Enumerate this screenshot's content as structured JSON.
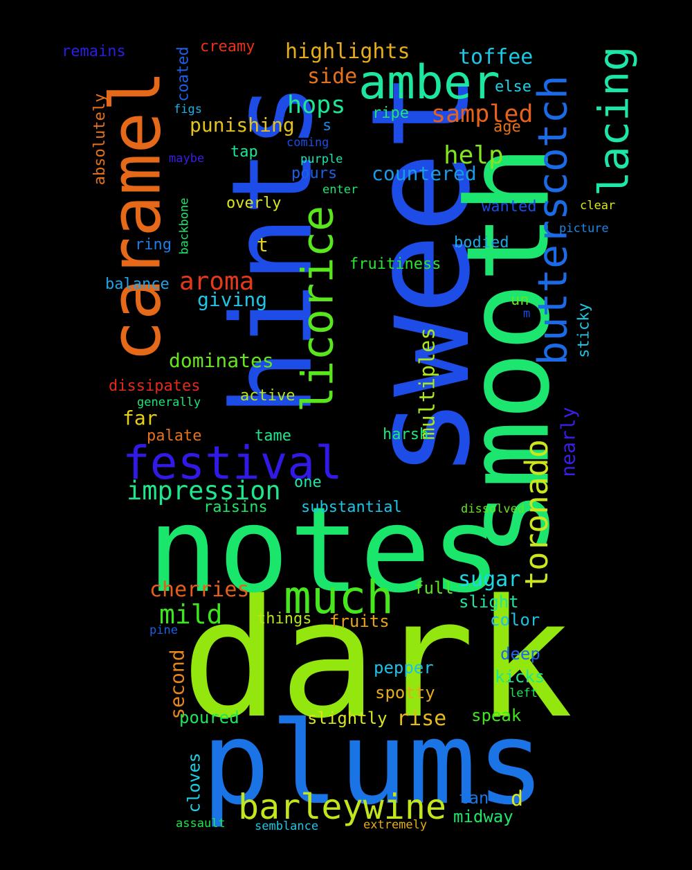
{
  "background_color": "#000000",
  "words": [
    {
      "text": "dark",
      "color": "#94e60f"
    },
    {
      "text": "sweet",
      "color": "#1d4ce6",
      "rotated": true
    },
    {
      "text": "notes",
      "color": "#19e66a"
    },
    {
      "text": "plums",
      "color": "#1b74e6"
    },
    {
      "text": "smooth",
      "color": "#1de670",
      "rotated": true
    },
    {
      "text": "hints",
      "color": "#1d4ce6",
      "rotated": true
    },
    {
      "text": "caramel",
      "color": "#e6691a",
      "rotated": true
    },
    {
      "text": "amber",
      "color": "#1de69e"
    },
    {
      "text": "festival",
      "color": "#3119e6"
    },
    {
      "text": "much",
      "color": "#48e61d"
    },
    {
      "text": "licorice",
      "color": "#5ae61d",
      "rotated": true
    },
    {
      "text": "butterscotch",
      "color": "#1b6ae6",
      "rotated": true
    },
    {
      "text": "barleywine",
      "color": "#c2e61d"
    },
    {
      "text": "toronado",
      "color": "#cce61d",
      "rotated": true
    },
    {
      "text": "lacing",
      "color": "#1de6a8",
      "rotated": true
    },
    {
      "text": "impression",
      "color": "#1de68f"
    },
    {
      "text": "aroma",
      "color": "#e6391a"
    },
    {
      "text": "mild",
      "color": "#3ee61d"
    },
    {
      "text": "sampled",
      "color": "#e6621a"
    },
    {
      "text": "hops",
      "color": "#1de694"
    },
    {
      "text": "help",
      "color": "#82e61d"
    },
    {
      "text": "highlights",
      "color": "#e6ad1a"
    },
    {
      "text": "toffee",
      "color": "#1dc7e6"
    },
    {
      "text": "countered",
      "color": "#1b9be6"
    },
    {
      "text": "cherries",
      "color": "#e65e1a"
    },
    {
      "text": "sugar",
      "color": "#1dd8e6"
    },
    {
      "text": "multiples",
      "color": "#abe61d",
      "rotated": true
    },
    {
      "text": "dominates",
      "color": "#64e61d"
    },
    {
      "text": "giving",
      "color": "#1dc5e6"
    },
    {
      "text": "punishing",
      "color": "#e6c21a"
    },
    {
      "text": "side",
      "color": "#e6721a"
    },
    {
      "text": "far",
      "color": "#e6d01a"
    },
    {
      "text": "second",
      "color": "#e6861a",
      "rotated": true
    },
    {
      "text": "rise",
      "color": "#e6ba1a"
    },
    {
      "text": "d",
      "color": "#dbe61d"
    },
    {
      "text": "nearly",
      "color": "#3a1de6",
      "rotated": true
    },
    {
      "text": "pepper",
      "color": "#1dc0e6"
    },
    {
      "text": "fruits",
      "color": "#e6a21a"
    },
    {
      "text": "slightly",
      "color": "#d9e61d"
    },
    {
      "text": "spotty",
      "color": "#e6ad1a"
    },
    {
      "text": "kicks",
      "color": "#1de68f"
    },
    {
      "text": "deep",
      "color": "#1b6ae6"
    },
    {
      "text": "speak",
      "color": "#43e61d"
    },
    {
      "text": "poured",
      "color": "#1de655"
    },
    {
      "text": "cloves",
      "color": "#1dd2e6",
      "rotated": true
    },
    {
      "text": "midway",
      "color": "#1de66a"
    },
    {
      "text": "tan",
      "color": "#1b74e6"
    },
    {
      "text": "slight",
      "color": "#1de69e"
    },
    {
      "text": "color",
      "color": "#1dc0e6"
    },
    {
      "text": "full",
      "color": "#5ae61d"
    },
    {
      "text": "things",
      "color": "#b5e61d"
    },
    {
      "text": "fruitiness",
      "color": "#2ae631"
    },
    {
      "text": "bodied",
      "color": "#1da8e6"
    },
    {
      "text": "wanted",
      "color": "#1b4ce6"
    },
    {
      "text": "overly",
      "color": "#dbe61d"
    },
    {
      "text": "balance",
      "color": "#1da3e6"
    },
    {
      "text": "ring",
      "color": "#1b7ee6"
    },
    {
      "text": "t",
      "color": "#e6d01a"
    },
    {
      "text": "tame",
      "color": "#1de68f"
    },
    {
      "text": "palate",
      "color": "#e6721a"
    },
    {
      "text": "harsh",
      "color": "#1de67a"
    },
    {
      "text": "active",
      "color": "#b5e61d"
    },
    {
      "text": "dissipates",
      "color": "#e6291a"
    },
    {
      "text": "raisins",
      "color": "#1de66a"
    },
    {
      "text": "substantial",
      "color": "#1dc5e6"
    },
    {
      "text": "one",
      "color": "#1de6a8"
    },
    {
      "text": "pours",
      "color": "#1b60e6"
    },
    {
      "text": "tap",
      "color": "#1de694"
    },
    {
      "text": "s",
      "color": "#1b88e6"
    },
    {
      "text": "ripe",
      "color": "#1de67f"
    },
    {
      "text": "age",
      "color": "#e6721a"
    },
    {
      "text": "else",
      "color": "#1dd2e6"
    },
    {
      "text": "un",
      "color": "#64e61d"
    },
    {
      "text": "sticky",
      "color": "#1dc7e6",
      "rotated": true
    },
    {
      "text": "creamy",
      "color": "#e6331a"
    },
    {
      "text": "remains",
      "color": "#2a1de6"
    },
    {
      "text": "coated",
      "color": "#1b60e6",
      "rotated": true
    },
    {
      "text": "absolutely",
      "color": "#e6721a",
      "rotated": true
    },
    {
      "text": "figs",
      "color": "#1db3e6"
    },
    {
      "text": "maybe",
      "color": "#3a1de6"
    },
    {
      "text": "backbone",
      "color": "#1de66a",
      "rotated": true
    },
    {
      "text": "coming",
      "color": "#1b4ce6"
    },
    {
      "text": "purple",
      "color": "#1de6b3"
    },
    {
      "text": "enter",
      "color": "#1de674"
    },
    {
      "text": "clear",
      "color": "#dbe61d"
    },
    {
      "text": "picture",
      "color": "#1b88e6"
    },
    {
      "text": "m",
      "color": "#1b4ce6"
    },
    {
      "text": "generally",
      "color": "#1de674"
    },
    {
      "text": "pine",
      "color": "#1b60e6"
    },
    {
      "text": "dissolved",
      "color": "#64e61d"
    },
    {
      "text": "left",
      "color": "#1de655"
    },
    {
      "text": "assault",
      "color": "#1de64a"
    },
    {
      "text": "semblance",
      "color": "#1dc7e6"
    },
    {
      "text": "extremely",
      "color": "#e6ad1a"
    }
  ]
}
